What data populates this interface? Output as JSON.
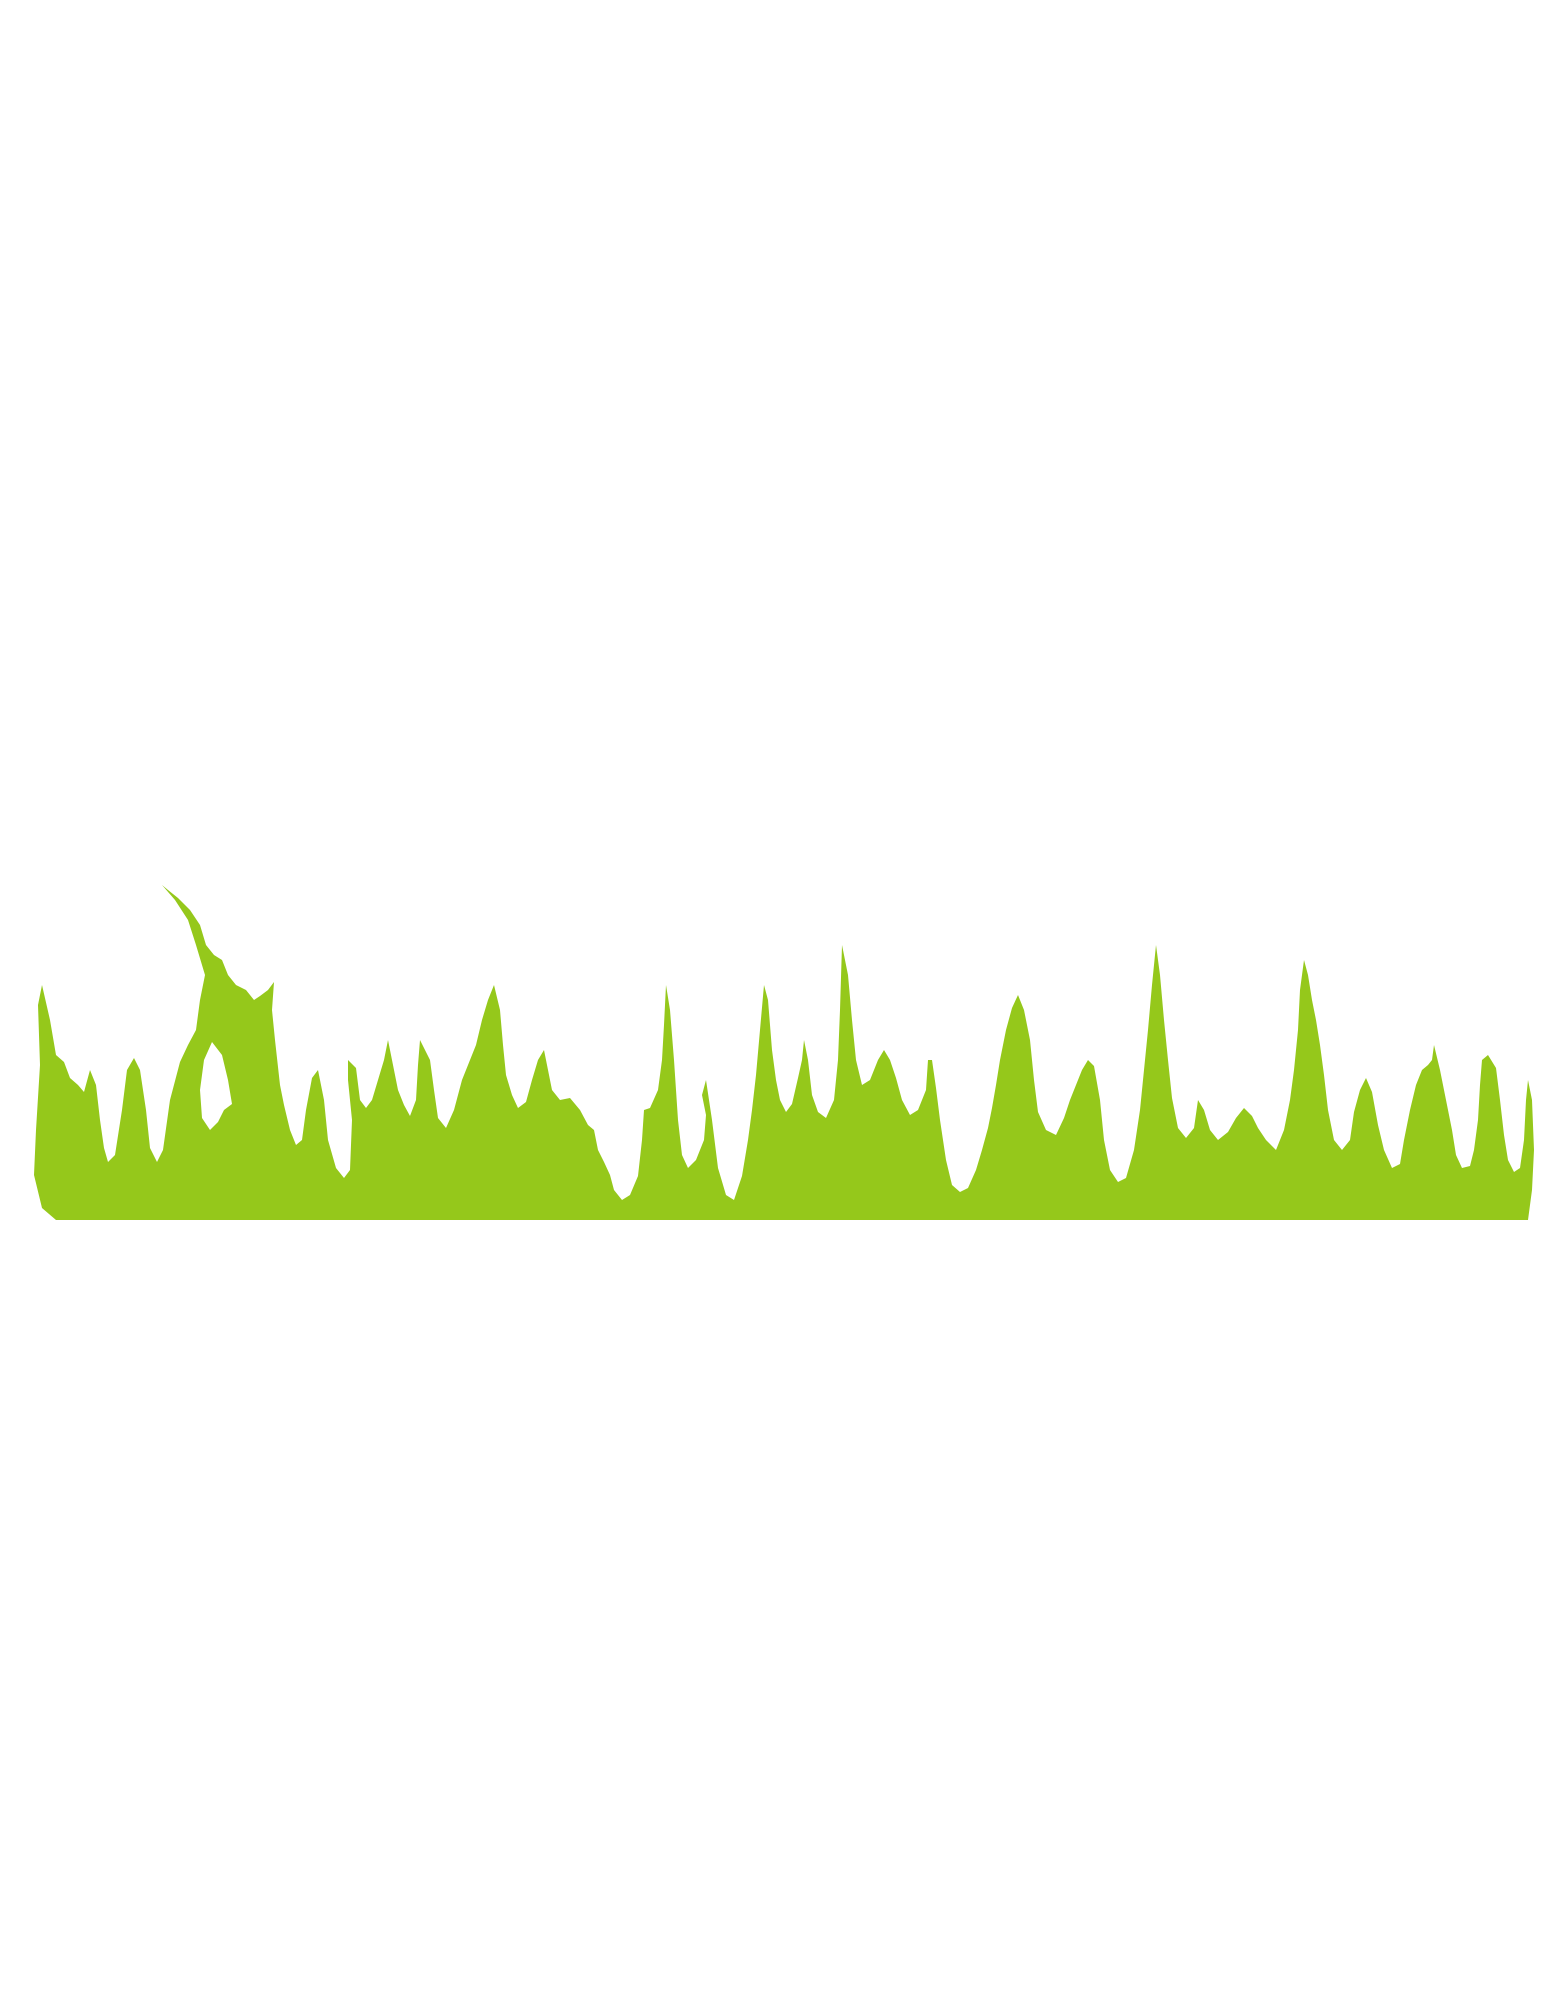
{
  "illustration": {
    "subject": "grass-strip",
    "icon": "grass-silhouette-icon",
    "colors": {
      "background": "#ffffff",
      "grass": "#95c81b"
    }
  }
}
